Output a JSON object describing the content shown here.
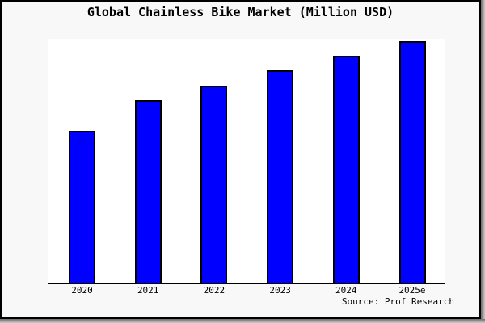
{
  "chart_data": {
    "type": "bar",
    "title": "Global Chainless Bike Market (Million USD)",
    "categories": [
      "2020",
      "2021",
      "2022",
      "2023",
      "2024",
      "2025e"
    ],
    "values": [
      62.9,
      75.6,
      81.6,
      88.0,
      94.0,
      100.0
    ],
    "values_note": "Relative bar heights (% of tallest 2025e bar); chart displays no numeric y-axis ticks",
    "xlabel": "",
    "ylabel": "",
    "legend": "none",
    "grid": false,
    "bar_color": "#0000fe",
    "bar_border_color": "#000000",
    "source_note": "Source: Prof Research"
  },
  "colors": {
    "canvas_background": "#f8f8f8",
    "plot_background": "#ffffff",
    "frame_border": "#000000",
    "shadow": "#6e6e6e",
    "text": "#000000",
    "axis": "#000000"
  }
}
